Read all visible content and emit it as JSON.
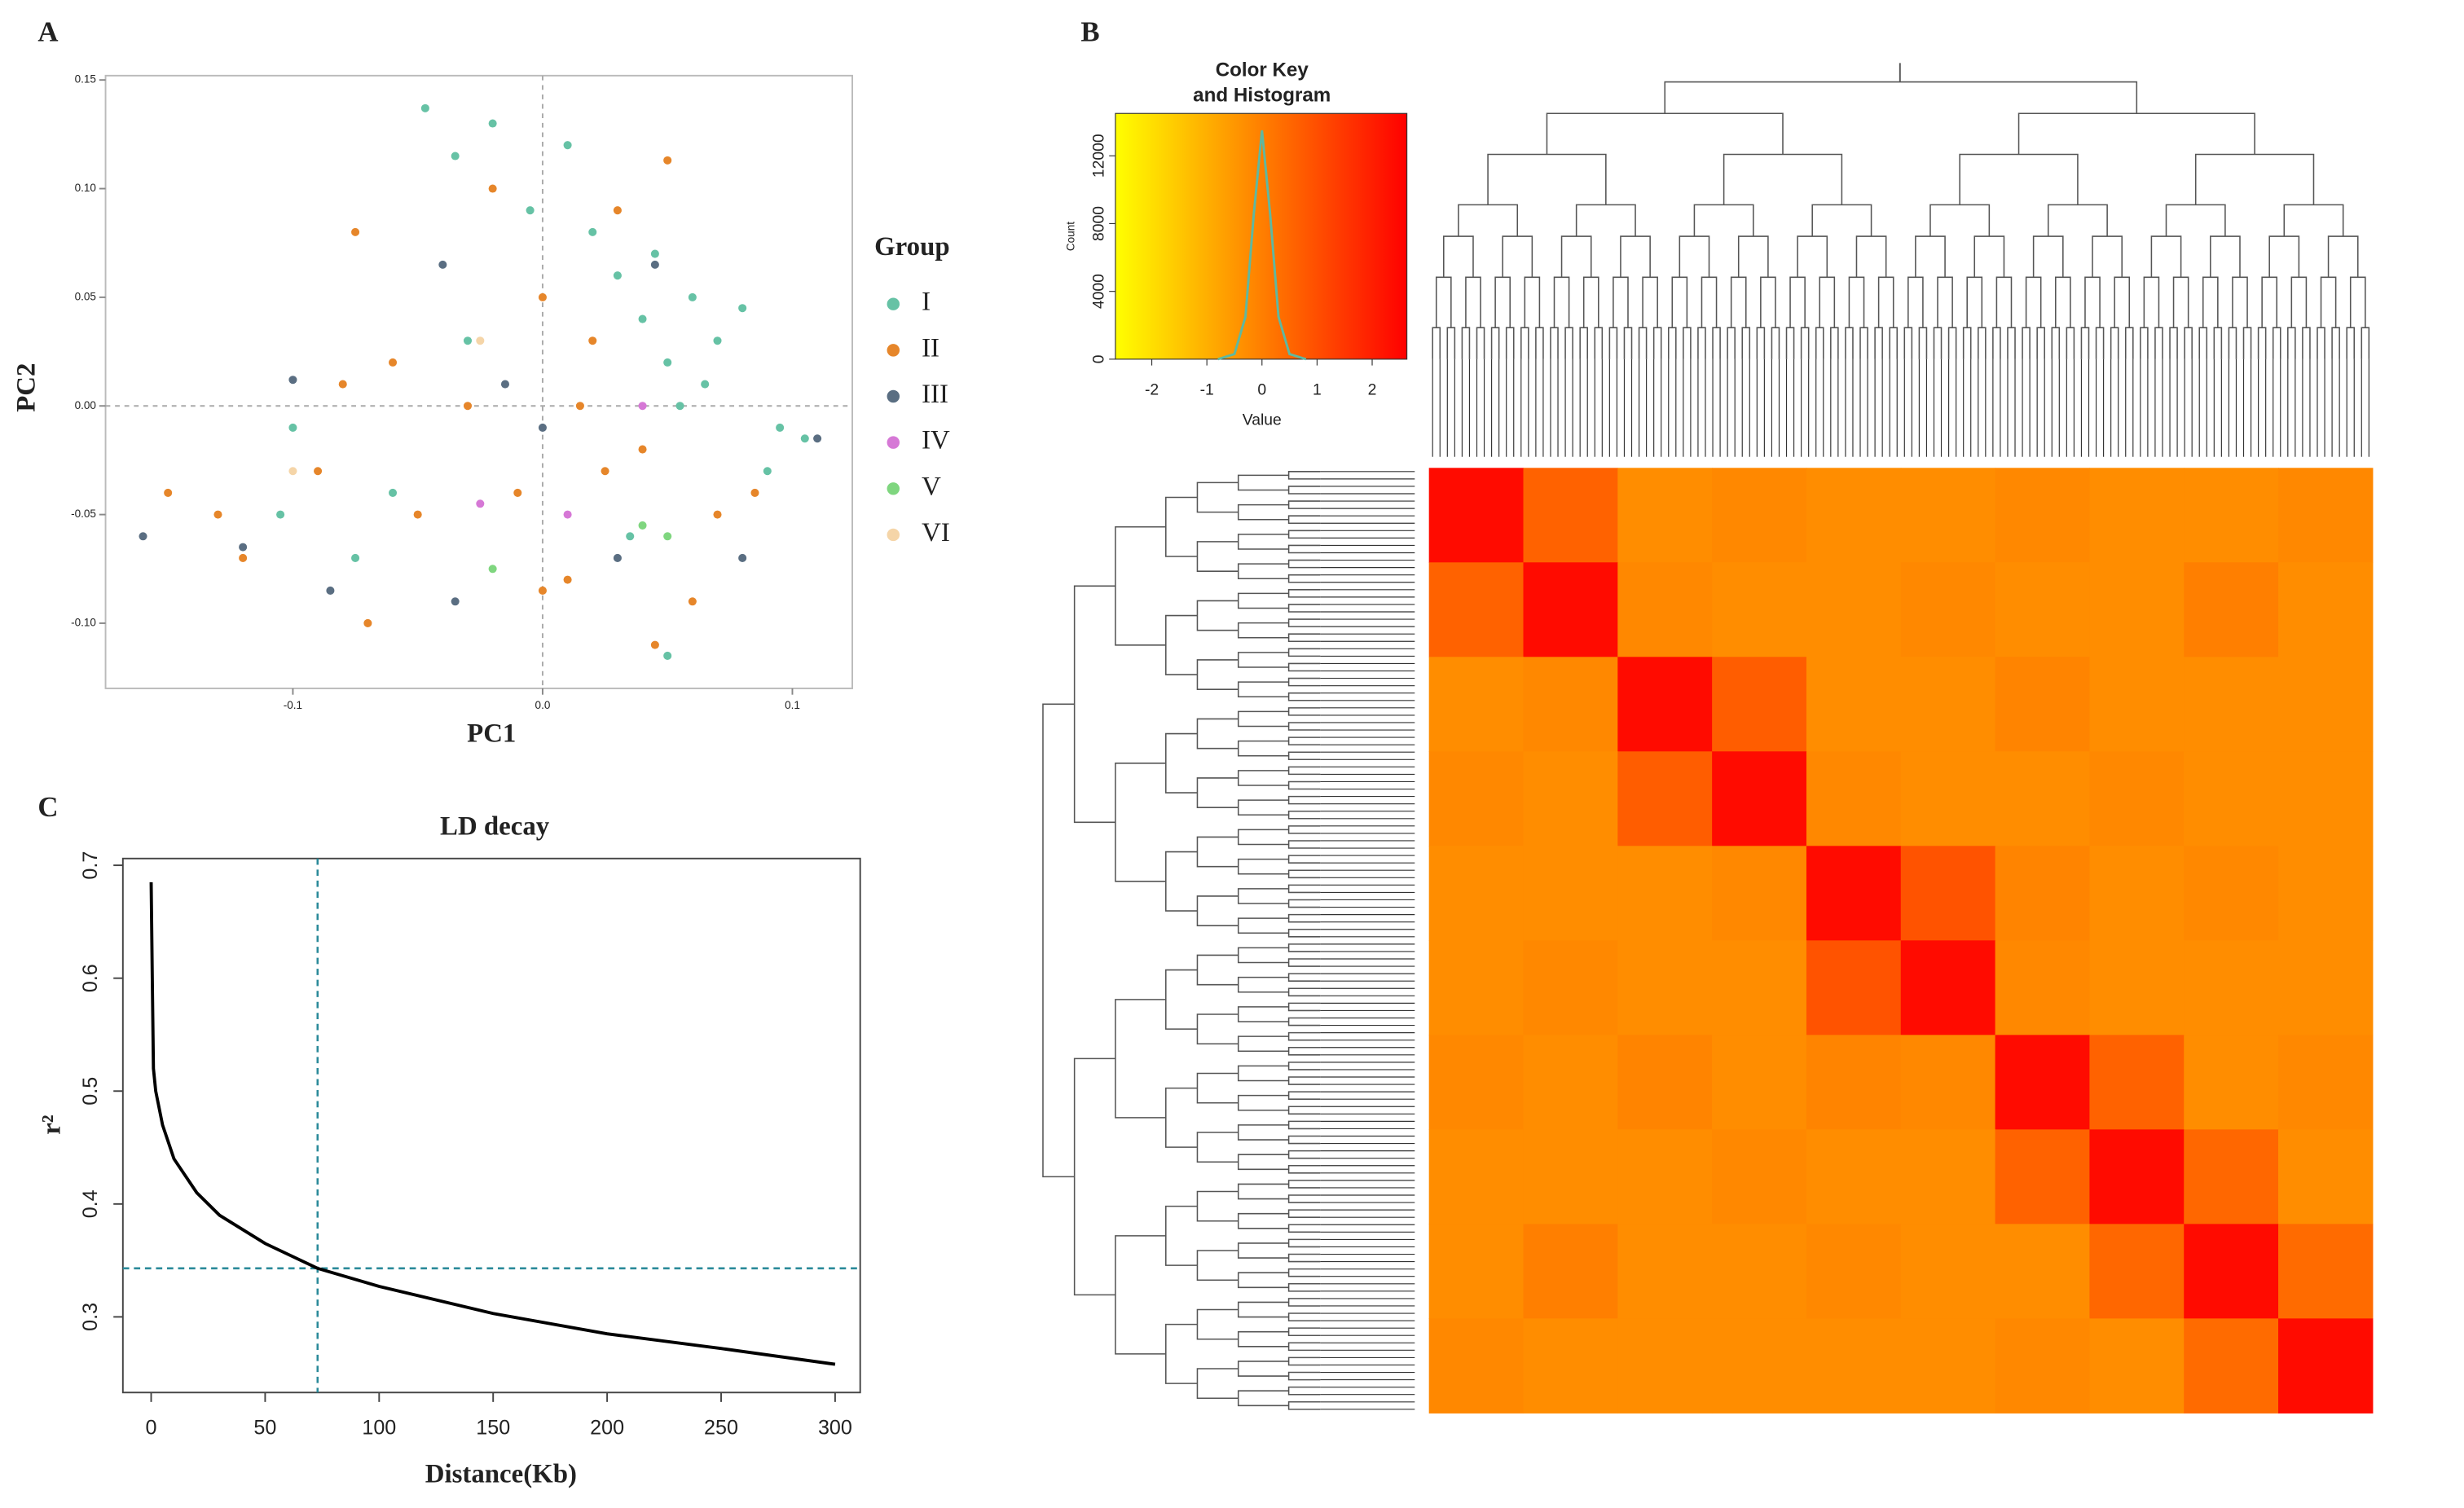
{
  "chart_data": [
    {
      "type": "scatter",
      "panel": "A",
      "xlabel": "PC1",
      "ylabel": "PC2",
      "legend_title": "Group",
      "xlim": [
        -0.175,
        0.124
      ],
      "ylim": [
        -0.13,
        0.152
      ],
      "xticks": [
        -0.1,
        {
          "value": 0,
          "label": "0.0"
        },
        0.1
      ],
      "yticks": [
        0.15,
        {
          "value": 0.1,
          "label": "0.10"
        },
        0.05,
        {
          "value": 0,
          "label": "0.00"
        },
        -0.05,
        {
          "value": -0.1,
          "label": "-0.10"
        }
      ],
      "series": [
        {
          "name": "I",
          "color": "#66c2a5",
          "x": [
            -0.047,
            -0.02,
            -0.035,
            0.01,
            -0.005,
            0.045,
            0.06,
            0.07,
            0.04,
            0.05,
            0.065,
            0.03,
            0.08,
            0.095,
            0.105,
            -0.1,
            -0.105,
            -0.075,
            0.035,
            0.05,
            -0.06,
            0.02,
            0.055,
            -0.03,
            0.09
          ],
          "values": [
            0.137,
            0.13,
            0.115,
            0.12,
            0.09,
            0.07,
            0.05,
            0.03,
            0.04,
            0.02,
            0.01,
            0.06,
            0.045,
            -0.01,
            -0.015,
            -0.01,
            -0.05,
            -0.07,
            -0.06,
            -0.115,
            -0.04,
            0.08,
            0,
            0.03,
            -0.03
          ]
        },
        {
          "name": "II",
          "color": "#e6862a",
          "x": [
            -0.075,
            0.05,
            -0.15,
            -0.13,
            -0.12,
            -0.09,
            -0.07,
            -0.06,
            -0.05,
            -0.02,
            0,
            0.02,
            0.03,
            0.04,
            0.01,
            -0.01,
            0.06,
            0.07,
            0.085,
            0.045,
            -0.03,
            0.015,
            -0.08,
            0,
            0.025
          ],
          "values": [
            0.08,
            0.113,
            -0.04,
            -0.05,
            -0.07,
            -0.03,
            -0.1,
            0.02,
            -0.05,
            0.1,
            0.05,
            0.03,
            0.09,
            -0.02,
            -0.08,
            -0.04,
            -0.09,
            -0.05,
            -0.04,
            -0.11,
            0,
            0,
            0.01,
            -0.085,
            -0.03
          ]
        },
        {
          "name": "III",
          "color": "#5a6e82",
          "x": [
            -0.16,
            -0.12,
            -0.1,
            -0.085,
            -0.035,
            -0.04,
            0,
            0.045,
            0.03,
            0.08,
            0.11,
            -0.015
          ],
          "values": [
            -0.06,
            -0.065,
            0.012,
            -0.085,
            -0.09,
            0.065,
            -0.01,
            0.065,
            -0.07,
            -0.07,
            -0.015,
            0.01
          ]
        },
        {
          "name": "IV",
          "color": "#d678d6",
          "x": [
            -0.025,
            0.01,
            0.04
          ],
          "values": [
            -0.045,
            -0.05,
            0
          ]
        },
        {
          "name": "V",
          "color": "#7fd67f",
          "x": [
            -0.02,
            0.04,
            0.05
          ],
          "values": [
            -0.075,
            -0.055,
            -0.06
          ]
        },
        {
          "name": "VI",
          "color": "#f5d5a8",
          "x": [
            -0.025,
            -0.1
          ],
          "values": [
            0.03,
            -0.03
          ]
        }
      ]
    },
    {
      "type": "heatmap",
      "panel": "B",
      "key_title": [
        "Color Key",
        "and Histogram"
      ],
      "xlabel": "Value",
      "ylabel": "Count",
      "colors": [
        "#ffff00",
        "#ff0000"
      ],
      "xlim": [
        -2.66,
        2.63
      ],
      "ylim": [
        0,
        14500
      ],
      "xticks": [
        -2,
        -1,
        0,
        1,
        2
      ],
      "yticks": [
        0,
        4000,
        8000,
        12000
      ],
      "histogram": {
        "color": "#5fb8a0",
        "x": [
          -0.8,
          -0.5,
          -0.3,
          -0.15,
          0,
          0.15,
          0.3,
          0.5,
          0.8
        ],
        "values": [
          0,
          300,
          2500,
          8500,
          13500,
          8500,
          2500,
          300,
          0
        ]
      },
      "matrix": [
        [
          2.4,
          0.6,
          -0.3,
          -0.2,
          -0.3,
          -0.3,
          -0.2,
          -0.3,
          -0.3,
          -0.2
        ],
        [
          0.6,
          2.4,
          -0.2,
          -0.3,
          -0.3,
          -0.2,
          -0.3,
          -0.3,
          0,
          -0.3
        ],
        [
          -0.3,
          -0.2,
          2.4,
          0.7,
          -0.3,
          -0.3,
          -0.1,
          -0.3,
          -0.3,
          -0.3
        ],
        [
          -0.2,
          -0.3,
          0.7,
          2.4,
          -0.2,
          -0.3,
          -0.3,
          -0.2,
          -0.3,
          -0.3
        ],
        [
          -0.3,
          -0.3,
          -0.3,
          -0.2,
          2.4,
          0.9,
          -0.1,
          -0.3,
          -0.2,
          -0.3
        ],
        [
          -0.3,
          -0.2,
          -0.3,
          -0.3,
          0.9,
          2.4,
          -0.2,
          -0.3,
          -0.3,
          -0.3
        ],
        [
          -0.2,
          -0.3,
          -0.1,
          -0.3,
          -0.1,
          -0.2,
          2.4,
          0.6,
          -0.3,
          -0.2
        ],
        [
          -0.3,
          -0.3,
          -0.3,
          -0.2,
          -0.3,
          -0.3,
          0.6,
          2.4,
          0.5,
          -0.3
        ],
        [
          -0.3,
          0,
          -0.3,
          -0.3,
          -0.2,
          -0.3,
          -0.3,
          0.5,
          2.4,
          0.4
        ],
        [
          -0.2,
          -0.3,
          -0.3,
          -0.3,
          -0.3,
          -0.3,
          -0.2,
          -0.3,
          0.4,
          2.4
        ]
      ]
    },
    {
      "type": "line",
      "panel": "C",
      "title": "LD decay",
      "xlabel": "Distance(Kb)",
      "ylabel": "r²",
      "xlim": [
        -12.4,
        311
      ],
      "ylim": [
        0.233,
        0.706
      ],
      "xticks": [
        0,
        50,
        100,
        150,
        200,
        250,
        300
      ],
      "yticks": [
        0.3,
        0.4,
        0.5,
        0.6,
        0.7
      ],
      "vline": 73,
      "hline": 0.343,
      "guide_color": "#2a8a9a",
      "series": [
        {
          "color": "#000000",
          "x": [
            0,
            0.5,
            1,
            2,
            5,
            10,
            20,
            30,
            50,
            73,
            100,
            150,
            200,
            250,
            300
          ],
          "values": [
            0.685,
            0.6,
            0.52,
            0.5,
            0.47,
            0.44,
            0.41,
            0.39,
            0.365,
            0.343,
            0.327,
            0.303,
            0.285,
            0.272,
            0.258
          ]
        }
      ]
    }
  ]
}
